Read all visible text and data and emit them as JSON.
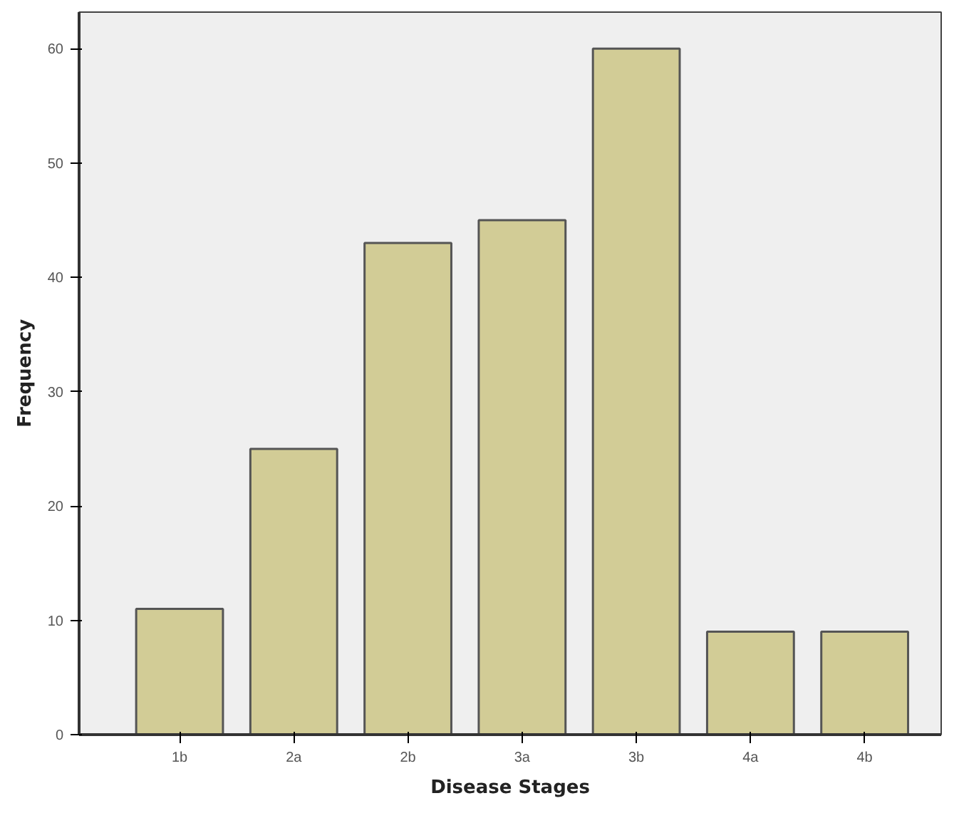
{
  "chart_data": {
    "type": "bar",
    "xlabel": "Disease Stages",
    "ylabel": "Frequency",
    "categories": [
      "1b",
      "2a",
      "2b",
      "3a",
      "3b",
      "4a",
      "4b"
    ],
    "values": [
      11,
      25,
      43,
      45,
      60,
      9,
      9
    ],
    "color": "#d2cc96",
    "ylim": [
      0,
      63.2
    ],
    "yticks": [
      0,
      10,
      20,
      30,
      40,
      50,
      60
    ],
    "grid": false
  }
}
